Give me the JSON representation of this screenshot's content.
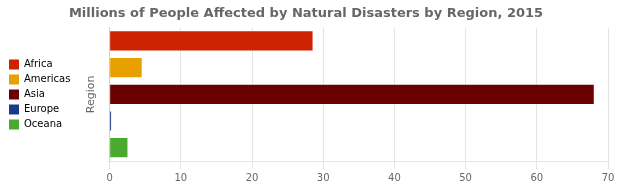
{
  "chart_data": {
    "type": "bar",
    "orientation": "horizontal",
    "title": "Millions of People Affected by Natural Disasters by Region, 2015",
    "categories": [
      "Africa",
      "Americas",
      "Asia",
      "Europe",
      "Oceana"
    ],
    "values": [
      28.5,
      4.5,
      68.0,
      0.2,
      2.5
    ],
    "colors": [
      "#cc2200",
      "#e8a000",
      "#6b0000",
      "#1a3a8a",
      "#4aaa30"
    ],
    "ylabel": "Region",
    "xlim": [
      0,
      70
    ],
    "xticks": [
      0,
      10,
      20,
      30,
      40,
      50,
      60,
      70
    ],
    "grid": true,
    "legend": "left",
    "tick_labels": "x"
  }
}
